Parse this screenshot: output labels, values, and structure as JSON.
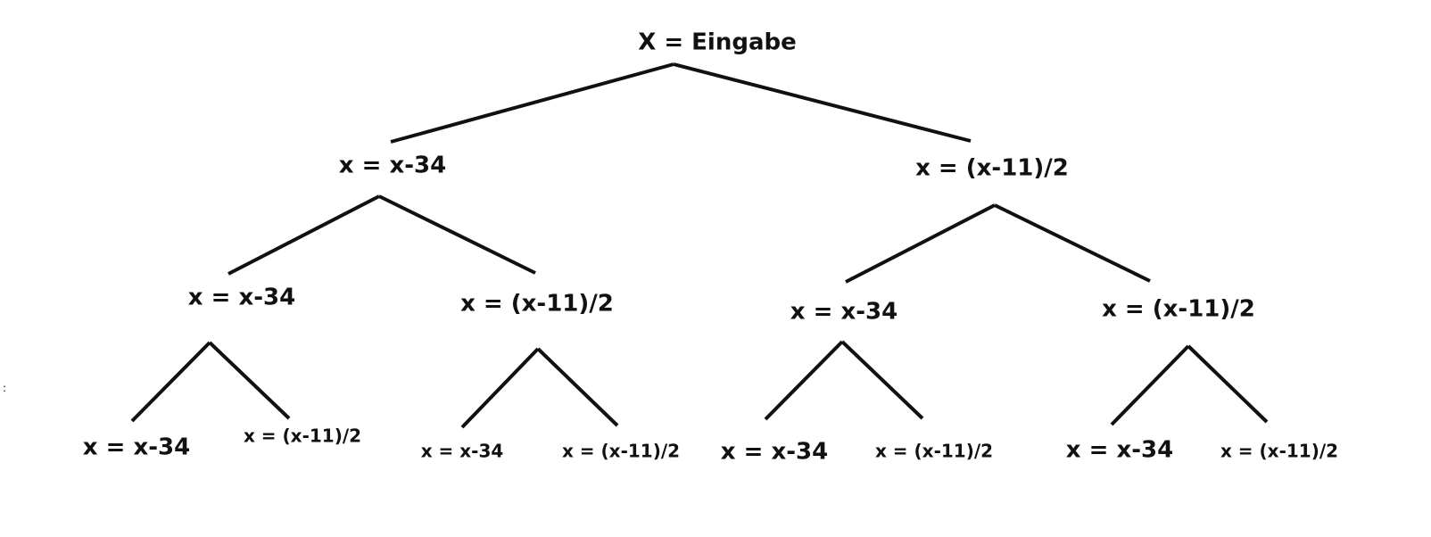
{
  "diagram": {
    "root": {
      "label": "X = Eingabe"
    },
    "level1": [
      {
        "label": "x = x-34"
      },
      {
        "label": "x = (x-11)/2"
      }
    ],
    "level2": [
      {
        "label": "x = x-34"
      },
      {
        "label": "x = (x-11)/2"
      },
      {
        "label": "x = x-34"
      },
      {
        "label": "x = (x-11)/2"
      }
    ],
    "level3": [
      {
        "label": "x = x-34"
      },
      {
        "label": "x = (x-11)/2"
      },
      {
        "label": "x = x-34"
      },
      {
        "label": "x = (x-11)/2"
      },
      {
        "label": "x = x-34"
      },
      {
        "label": "x = (x-11)/2"
      },
      {
        "label": "x = x-34"
      },
      {
        "label": "x = (x-11)/2"
      }
    ],
    "stray_mark": ":",
    "line_color": "#111111",
    "text_color": "#111111"
  }
}
